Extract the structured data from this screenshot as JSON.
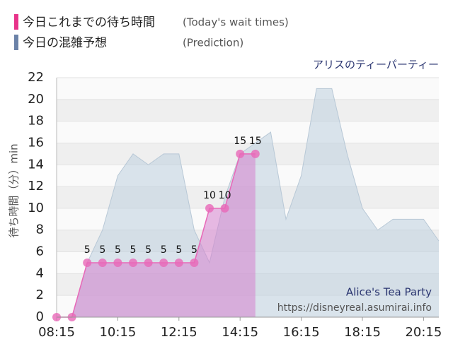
{
  "chart_data": {
    "type": "area",
    "title": "アリスのティーパーティー",
    "legend": [
      {
        "label": "今日これまでの待ち時間",
        "note": "(Today's wait times)",
        "color": "#e8338a"
      },
      {
        "label": "今日の混雑予想",
        "note": "(Prediction)",
        "color": "#6b82a8"
      }
    ],
    "ylabel": "待ち時間（分）min",
    "annotation": "Alice's Tea Party",
    "source": "https://disneyreal.asumirai.info",
    "xlim": [
      "08:15",
      "20:45"
    ],
    "xticks": [
      "08:15",
      "10:15",
      "12:15",
      "14:15",
      "16:15",
      "18:15",
      "20:15"
    ],
    "ylim": [
      0,
      22
    ],
    "yticks": [
      0,
      2,
      4,
      6,
      8,
      10,
      12,
      14,
      16,
      18,
      20,
      22
    ],
    "grid": true,
    "series": [
      {
        "name": "今日の混雑予想",
        "color": "#b8c8d6",
        "x": [
          "08:15",
          "08:45",
          "09:15",
          "09:45",
          "10:15",
          "10:45",
          "11:15",
          "11:45",
          "12:15",
          "12:45",
          "13:15",
          "13:45",
          "14:15",
          "14:45",
          "15:15",
          "15:45",
          "16:15",
          "16:45",
          "17:15",
          "17:45",
          "18:15",
          "18:45",
          "19:15",
          "19:45",
          "20:15",
          "20:45"
        ],
        "values": [
          0,
          0,
          5,
          8,
          13,
          15,
          14,
          15,
          15,
          8,
          5,
          11,
          15,
          16,
          17,
          9,
          13,
          21,
          21,
          15,
          10,
          8,
          9,
          9,
          9,
          7
        ]
      },
      {
        "name": "今日これまでの待ち時間",
        "color": "#e868b8",
        "x": [
          "08:15",
          "08:45",
          "09:15",
          "09:45",
          "10:15",
          "10:45",
          "11:15",
          "11:45",
          "12:15",
          "12:45",
          "13:15",
          "13:45",
          "14:15",
          "14:45"
        ],
        "values": [
          0,
          0,
          5,
          5,
          5,
          5,
          5,
          5,
          5,
          5,
          10,
          10,
          15,
          15
        ]
      }
    ]
  }
}
